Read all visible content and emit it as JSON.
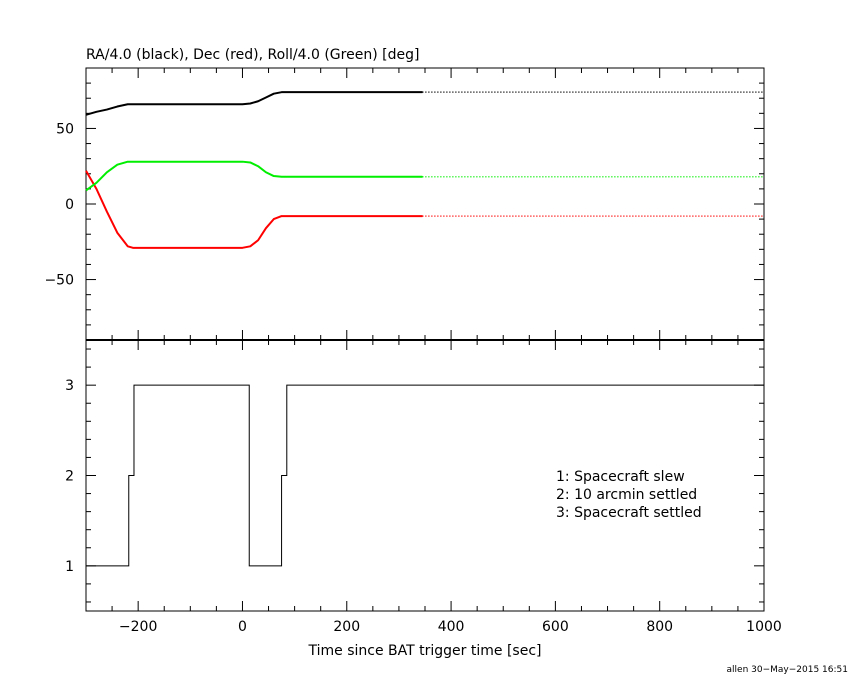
{
  "chart_data": [
    {
      "type": "line",
      "title": "RA/4.0 (black), Dec (red), Roll/4.0 (Green) [deg]",
      "xlim": [
        -300,
        1000
      ],
      "ylim": [
        -90,
        90
      ],
      "y_ticks": [
        {
          "value": 50,
          "label": "50"
        },
        {
          "value": 0,
          "label": "0"
        },
        {
          "value": -50,
          "label": "−50"
        }
      ],
      "series": [
        {
          "color": "#000000",
          "x": [
            -300,
            -280,
            -260,
            -240,
            -220,
            -210,
            0,
            15,
            30,
            45,
            60,
            75,
            90,
            345
          ],
          "y": [
            59,
            61,
            62.5,
            64.5,
            66,
            66,
            66,
            66.5,
            68,
            70.5,
            73,
            74,
            74,
            74
          ],
          "solid_until": 345
        },
        {
          "color": "#ff0000",
          "x": [
            -300,
            -280,
            -260,
            -240,
            -220,
            -210,
            0,
            15,
            30,
            45,
            60,
            75,
            90,
            345
          ],
          "y": [
            22,
            10,
            -5,
            -19,
            -28,
            -29,
            -29,
            -28,
            -24,
            -16,
            -10,
            -8,
            -8,
            -8
          ],
          "solid_until": 345
        },
        {
          "color": "#00ee00",
          "x": [
            -300,
            -280,
            -260,
            -240,
            -220,
            -210,
            0,
            15,
            30,
            45,
            60,
            75,
            90,
            345
          ],
          "y": [
            9,
            14,
            21,
            26,
            28,
            28,
            28,
            27.5,
            25,
            21,
            18.5,
            18,
            18,
            18
          ],
          "solid_until": 345
        }
      ]
    },
    {
      "type": "line",
      "xlabel": "Time since BAT trigger time [sec]",
      "xlim": [
        -300,
        1000
      ],
      "ylim": [
        0.5,
        3.5
      ],
      "x_ticks": [
        {
          "value": -200,
          "label": "−200"
        },
        {
          "value": 0,
          "label": "0"
        },
        {
          "value": 200,
          "label": "200"
        },
        {
          "value": 400,
          "label": "400"
        },
        {
          "value": 600,
          "label": "600"
        },
        {
          "value": 800,
          "label": "800"
        },
        {
          "value": 1000,
          "label": "1000"
        }
      ],
      "y_ticks": [
        {
          "value": 1,
          "label": "1"
        },
        {
          "value": 2,
          "label": "2"
        },
        {
          "value": 3,
          "label": "3"
        }
      ],
      "series": [
        {
          "color": "#000000",
          "step": true,
          "x": [
            -300,
            -218,
            -218,
            -208,
            -208,
            13,
            13,
            75,
            75,
            85,
            85,
            1000
          ],
          "y": [
            1,
            1,
            2,
            2,
            3,
            3,
            1,
            1,
            2,
            2,
            3,
            3
          ]
        }
      ],
      "annotations": [
        "1: Spacecraft slew",
        "2: 10 arcmin settled",
        "3: Spacecraft settled"
      ]
    }
  ],
  "footer": "allen 30−May−2015 16:51"
}
